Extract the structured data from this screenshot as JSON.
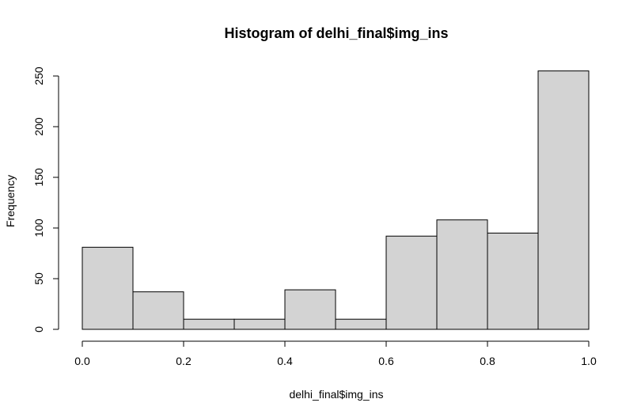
{
  "chart_data": {
    "type": "bar",
    "title": "Histogram of delhi_final$img_ins",
    "xlabel": "delhi_final$img_ins",
    "ylabel": "Frequency",
    "bins": [
      {
        "from": 0.0,
        "to": 0.1,
        "count": 81
      },
      {
        "from": 0.1,
        "to": 0.2,
        "count": 37
      },
      {
        "from": 0.2,
        "to": 0.3,
        "count": 10
      },
      {
        "from": 0.3,
        "to": 0.4,
        "count": 10
      },
      {
        "from": 0.4,
        "to": 0.5,
        "count": 39
      },
      {
        "from": 0.5,
        "to": 0.6,
        "count": 10
      },
      {
        "from": 0.6,
        "to": 0.7,
        "count": 92
      },
      {
        "from": 0.7,
        "to": 0.8,
        "count": 108
      },
      {
        "from": 0.8,
        "to": 0.9,
        "count": 95
      },
      {
        "from": 0.9,
        "to": 1.0,
        "count": 255
      }
    ],
    "xlim": [
      0,
      1
    ],
    "ylim": [
      0,
      255
    ],
    "xticks": [
      {
        "value": 0.0,
        "label": "0.0"
      },
      {
        "value": 0.2,
        "label": "0.2"
      },
      {
        "value": 0.4,
        "label": "0.4"
      },
      {
        "value": 0.6,
        "label": "0.6"
      },
      {
        "value": 0.8,
        "label": "0.8"
      },
      {
        "value": 1.0,
        "label": "1.0"
      }
    ],
    "yticks": [
      {
        "value": 0,
        "label": "0"
      },
      {
        "value": 50,
        "label": "50"
      },
      {
        "value": 100,
        "label": "100"
      },
      {
        "value": 150,
        "label": "150"
      },
      {
        "value": 200,
        "label": "200"
      },
      {
        "value": 250,
        "label": "250"
      }
    ],
    "bar_color": "#d3d3d3",
    "grid": false
  }
}
